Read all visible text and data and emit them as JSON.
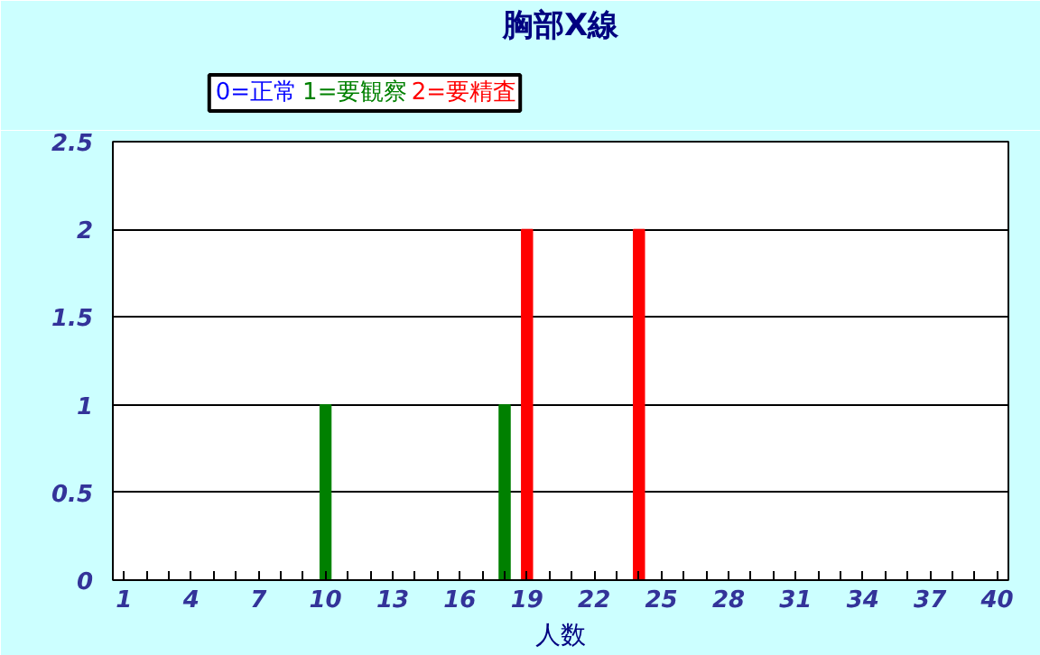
{
  "chart_data": {
    "type": "bar",
    "title": "胸部X線",
    "xlabel": "人数",
    "categories": [
      "1",
      null,
      null,
      "4",
      null,
      null,
      "7",
      null,
      null,
      "10",
      null,
      null,
      "13",
      null,
      null,
      "16",
      null,
      null,
      "19",
      null,
      null,
      "22",
      null,
      null,
      "25",
      null,
      null,
      "28",
      null,
      null,
      "31",
      null,
      null,
      "34",
      null,
      null,
      "37",
      null,
      null,
      "40"
    ],
    "series": [
      {
        "name": "0=正常",
        "color": "#0000ff",
        "values": [
          0,
          0,
          0,
          0,
          0,
          0,
          0,
          0,
          0,
          null,
          0,
          0,
          0,
          0,
          0,
          0,
          0,
          null,
          null,
          0,
          0,
          0,
          0,
          null,
          0,
          0,
          0,
          0,
          0,
          0,
          0,
          0,
          0,
          0,
          0,
          0,
          0,
          0,
          0,
          0
        ]
      },
      {
        "name": "1=要観察",
        "color": "#008000",
        "values": [
          null,
          null,
          null,
          null,
          null,
          null,
          null,
          null,
          null,
          1,
          null,
          null,
          null,
          null,
          null,
          null,
          null,
          1,
          null,
          null,
          null,
          null,
          null,
          null,
          null,
          null,
          null,
          null,
          null,
          null,
          null,
          null,
          null,
          null,
          null,
          null,
          null,
          null,
          null,
          null
        ]
      },
      {
        "name": "2=要精査",
        "color": "#ff0000",
        "values": [
          null,
          null,
          null,
          null,
          null,
          null,
          null,
          null,
          null,
          null,
          null,
          null,
          null,
          null,
          null,
          null,
          null,
          null,
          2,
          null,
          null,
          null,
          null,
          2,
          null,
          null,
          null,
          null,
          null,
          null,
          null,
          null,
          null,
          null,
          null,
          null,
          null,
          null,
          null,
          null
        ]
      }
    ],
    "ylim": [
      0,
      2.5
    ],
    "yticks": [
      0,
      0.5,
      1,
      1.5,
      2,
      2.5
    ],
    "grid": "y"
  }
}
